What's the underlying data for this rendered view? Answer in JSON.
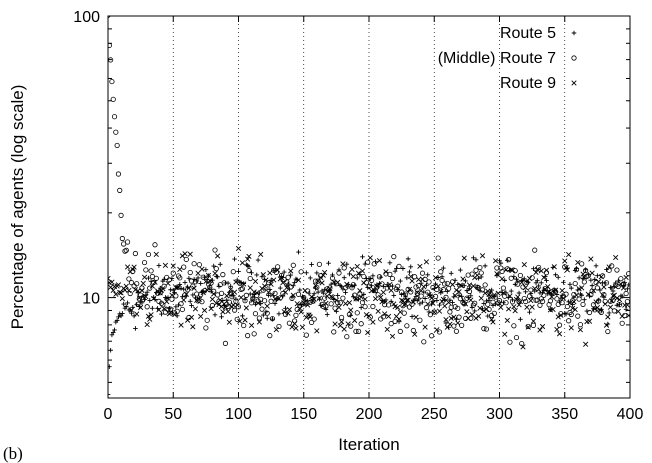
{
  "panel_label": "(b)",
  "chart_data": {
    "type": "scatter",
    "title": "",
    "xlabel": "Iteration",
    "ylabel": "Percentage of agents (log scale)",
    "xlim": [
      0,
      400
    ],
    "ylim": [
      4.4,
      100
    ],
    "yscale": "log",
    "xticks": [
      0,
      50,
      100,
      150,
      200,
      250,
      300,
      350,
      400
    ],
    "yticks": [
      10,
      100
    ],
    "grid": "vertical dotted lines at x = 50, 100, 150, 200, 250, 300, 350",
    "legend_position": "top-right",
    "series": [
      {
        "name": "Route 5",
        "marker": "plus",
        "anchors": [
          [
            0,
            4.5
          ],
          [
            1,
            5.4
          ],
          [
            2,
            6.4
          ],
          [
            3,
            7.2
          ],
          [
            5,
            7.8
          ],
          [
            8,
            8.5
          ],
          [
            12,
            9.1
          ],
          [
            20,
            9.5
          ],
          [
            40,
            10.2
          ],
          [
            60,
            10.6
          ],
          [
            100,
            10.8
          ],
          [
            150,
            10.8
          ],
          [
            200,
            10.7
          ],
          [
            250,
            10.7
          ],
          [
            300,
            10.8
          ],
          [
            350,
            10.7
          ],
          [
            400,
            10.7
          ]
        ],
        "spread": 0.11,
        "count": 400
      },
      {
        "name": "(Middle) Route 7",
        "marker": "circle",
        "anchors": [
          [
            0,
            100
          ],
          [
            1,
            78
          ],
          [
            2,
            68
          ],
          [
            3,
            58
          ],
          [
            4,
            50
          ],
          [
            5,
            44
          ],
          [
            6,
            39
          ],
          [
            7,
            34
          ],
          [
            8,
            28
          ],
          [
            9,
            23
          ],
          [
            10,
            19
          ],
          [
            12,
            16
          ],
          [
            15,
            14
          ],
          [
            20,
            12.2
          ],
          [
            30,
            11
          ],
          [
            50,
            10.4
          ],
          [
            100,
            10.1
          ],
          [
            150,
            10.0
          ],
          [
            200,
            10.0
          ],
          [
            250,
            10.0
          ],
          [
            300,
            10.0
          ],
          [
            350,
            10.0
          ],
          [
            400,
            10.0
          ]
        ],
        "spread": 0.15,
        "count": 400
      },
      {
        "name": "Route 9",
        "marker": "cross",
        "anchors": [
          [
            0,
            11.5
          ],
          [
            5,
            10.6
          ],
          [
            10,
            10.4
          ],
          [
            20,
            10.2
          ],
          [
            50,
            10.0
          ],
          [
            100,
            10.0
          ],
          [
            150,
            10.0
          ],
          [
            200,
            10.0
          ],
          [
            250,
            10.0
          ],
          [
            300,
            10.0
          ],
          [
            350,
            10.0
          ],
          [
            400,
            10.0
          ]
        ],
        "spread": 0.16,
        "count": 400
      }
    ]
  }
}
